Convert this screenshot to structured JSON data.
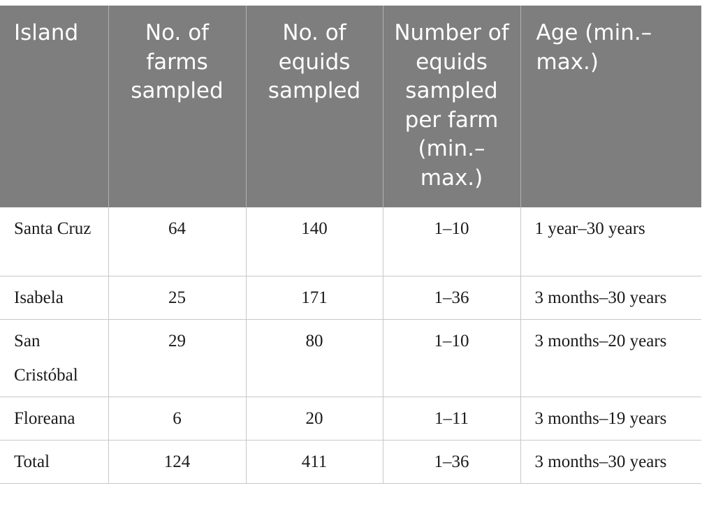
{
  "table": {
    "headers": [
      "Island",
      "No. of farms sampled",
      "No. of equids sampled",
      "Number of equids sampled per farm (min.–max.)",
      "Age (min.–max.)"
    ],
    "rows": [
      {
        "island": "Santa Cruz",
        "farms": "64",
        "equids": "140",
        "per_farm": "1–10",
        "age": "1 year–30 years"
      },
      {
        "island": "Isabela",
        "farms": "25",
        "equids": "171",
        "per_farm": "1–36",
        "age": "3 months–30 years"
      },
      {
        "island": "San Cristóbal",
        "farms": "29",
        "equids": "80",
        "per_farm": "1–10",
        "age": "3 months–20 years"
      },
      {
        "island": "Floreana",
        "farms": "6",
        "equids": "20",
        "per_farm": "1–11",
        "age": "3 months–19 years"
      },
      {
        "island": "Total",
        "farms": "124",
        "equids": "411",
        "per_farm": "1–36",
        "age": "3 months–30 years"
      }
    ]
  }
}
